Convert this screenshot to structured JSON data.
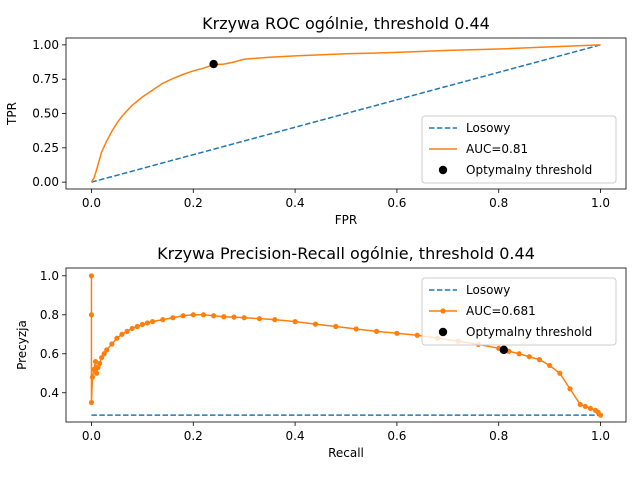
{
  "chart_data": [
    {
      "type": "line",
      "title": "Krzywa ROC ogólnie, threshold  0.44",
      "xlabel": "FPR",
      "ylabel": "TPR",
      "xlim": [
        -0.05,
        1.05
      ],
      "ylim": [
        -0.05,
        1.05
      ],
      "x_ticks": [
        0.0,
        0.2,
        0.4,
        0.6,
        0.8,
        1.0
      ],
      "x_tick_labels": [
        "0.0",
        "0.2",
        "0.4",
        "0.6",
        "0.8",
        "1.0"
      ],
      "y_ticks": [
        0.0,
        0.25,
        0.5,
        0.75,
        1.0
      ],
      "y_tick_labels": [
        "0.00",
        "0.25",
        "0.50",
        "0.75",
        "1.00"
      ],
      "grid": false,
      "legend_position": "lower-right",
      "series": [
        {
          "name": "Losowy",
          "style": "dashed",
          "color": "#1f77b4",
          "x": [
            0,
            1
          ],
          "y": [
            0,
            1
          ]
        },
        {
          "name": "AUC=0.81",
          "style": "solid",
          "color": "#ff7f0e",
          "x": [
            0.0,
            0.005,
            0.01,
            0.02,
            0.03,
            0.04,
            0.05,
            0.06,
            0.08,
            0.1,
            0.12,
            0.14,
            0.16,
            0.18,
            0.2,
            0.22,
            0.24,
            0.26,
            0.28,
            0.3,
            0.35,
            0.4,
            0.5,
            0.6,
            0.7,
            0.8,
            0.9,
            0.95,
            1.0
          ],
          "y": [
            0.0,
            0.03,
            0.09,
            0.22,
            0.3,
            0.37,
            0.43,
            0.48,
            0.56,
            0.62,
            0.67,
            0.72,
            0.755,
            0.785,
            0.81,
            0.83,
            0.855,
            0.86,
            0.875,
            0.895,
            0.91,
            0.92,
            0.935,
            0.945,
            0.96,
            0.97,
            0.985,
            0.993,
            1.0
          ]
        }
      ],
      "marker": {
        "name": "Optymalny threshold",
        "x": 0.24,
        "y": 0.86,
        "color": "#000000"
      }
    },
    {
      "type": "line",
      "title": "Krzywa Precision-Recall ogólnie, threshold  0.44",
      "xlabel": "Recall",
      "ylabel": "Precyzja",
      "xlim": [
        -0.05,
        1.05
      ],
      "ylim": [
        0.25,
        1.04
      ],
      "x_ticks": [
        0.0,
        0.2,
        0.4,
        0.6,
        0.8,
        1.0
      ],
      "x_tick_labels": [
        "0.0",
        "0.2",
        "0.4",
        "0.6",
        "0.8",
        "1.0"
      ],
      "y_ticks": [
        0.4,
        0.6,
        0.8,
        1.0
      ],
      "y_tick_labels": [
        "0.4",
        "0.6",
        "0.8",
        "1.0"
      ],
      "grid": false,
      "legend_position": "upper-right",
      "series": [
        {
          "name": "Losowy",
          "style": "dashed",
          "color": "#1f77b4",
          "x": [
            0,
            1
          ],
          "y": [
            0.285,
            0.285
          ]
        },
        {
          "name": "AUC=0.681",
          "style": "solid-markers",
          "color": "#ff7f0e",
          "x": [
            0.0,
            0.0,
            0.0,
            0.002,
            0.005,
            0.008,
            0.01,
            0.013,
            0.016,
            0.02,
            0.025,
            0.03,
            0.04,
            0.05,
            0.06,
            0.07,
            0.08,
            0.09,
            0.1,
            0.11,
            0.12,
            0.14,
            0.16,
            0.18,
            0.2,
            0.22,
            0.24,
            0.26,
            0.28,
            0.3,
            0.33,
            0.36,
            0.4,
            0.44,
            0.48,
            0.52,
            0.56,
            0.6,
            0.64,
            0.68,
            0.72,
            0.76,
            0.8,
            0.82,
            0.84,
            0.86,
            0.88,
            0.9,
            0.92,
            0.94,
            0.96,
            0.97,
            0.98,
            0.99,
            0.995,
            1.0
          ],
          "y": [
            1.0,
            0.8,
            0.35,
            0.48,
            0.52,
            0.56,
            0.5,
            0.53,
            0.55,
            0.58,
            0.6,
            0.62,
            0.65,
            0.68,
            0.7,
            0.715,
            0.73,
            0.74,
            0.75,
            0.758,
            0.765,
            0.775,
            0.785,
            0.795,
            0.8,
            0.8,
            0.795,
            0.79,
            0.788,
            0.785,
            0.78,
            0.775,
            0.765,
            0.752,
            0.74,
            0.727,
            0.715,
            0.705,
            0.695,
            0.68,
            0.665,
            0.648,
            0.628,
            0.613,
            0.6,
            0.585,
            0.57,
            0.54,
            0.5,
            0.42,
            0.34,
            0.33,
            0.32,
            0.31,
            0.3,
            0.285
          ]
        }
      ],
      "marker": {
        "name": "Optymalny threshold",
        "x": 0.81,
        "y": 0.62,
        "color": "#000000"
      }
    }
  ]
}
